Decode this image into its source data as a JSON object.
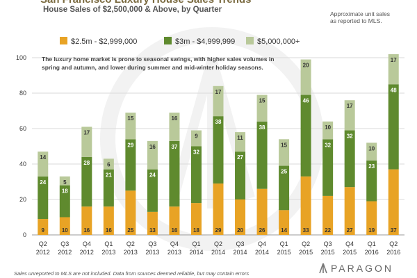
{
  "header": {
    "title": "San Francisco Luxury House Sales Trends",
    "subtitle": "House Sales of $2,500,000 & Above, by Quarter",
    "note_line1": "Approximate unit sales",
    "note_line2": "as reported to MLS."
  },
  "annotation": {
    "line1": "The luxury home market is prone to seasonal swings, with higher sales volumes in",
    "line2": "spring and autumn, and lower during summer and mid-winter holiday seasons."
  },
  "footer": {
    "disclaimer": "Sales unreported to MLS are not included. Data from sources deemed reliable, but may contain errors",
    "brand": "PARAGON"
  },
  "chart_data": {
    "type": "bar",
    "stacked": true,
    "title": "San Francisco Luxury House Sales Trends",
    "subtitle": "House Sales of $2,500,000 & Above, by Quarter",
    "xlabel": "",
    "ylabel": "",
    "ylim": [
      0,
      100
    ],
    "yticks": [
      0,
      20,
      40,
      60,
      80,
      100
    ],
    "grid": true,
    "legend_position": "top",
    "categories": [
      [
        "Q2",
        "2012"
      ],
      [
        "Q3",
        "2012"
      ],
      [
        "Q4",
        "2012"
      ],
      [
        "Q1",
        "2013"
      ],
      [
        "Q2",
        "2013"
      ],
      [
        "Q3",
        "2013"
      ],
      [
        "Q4",
        "2013"
      ],
      [
        "Q1",
        "2014"
      ],
      [
        "Q2",
        "2014"
      ],
      [
        "Q3",
        "2014"
      ],
      [
        "Q4",
        "2014"
      ],
      [
        "Q1",
        "2015"
      ],
      [
        "Q2",
        "2015"
      ],
      [
        "Q3",
        "2015"
      ],
      [
        "Q4",
        "2015"
      ],
      [
        "Q1",
        "2016"
      ],
      [
        "Q2",
        "2016"
      ]
    ],
    "series": [
      {
        "name": "$2.5m - $2,999,000",
        "color": "#e8a325",
        "values": [
          9,
          10,
          16,
          16,
          25,
          13,
          16,
          18,
          29,
          20,
          26,
          14,
          33,
          22,
          27,
          19,
          37
        ]
      },
      {
        "name": "$3m - $4,999,999",
        "color": "#5f8a2e",
        "values": [
          24,
          18,
          28,
          21,
          29,
          24,
          37,
          32,
          38,
          27,
          38,
          25,
          46,
          32,
          32,
          23,
          48
        ]
      },
      {
        "name": "$5,000,000+",
        "color": "#b9c99a",
        "values": [
          14,
          5,
          17,
          6,
          15,
          16,
          16,
          9,
          17,
          11,
          15,
          15,
          20,
          10,
          17,
          10,
          17
        ]
      }
    ]
  }
}
